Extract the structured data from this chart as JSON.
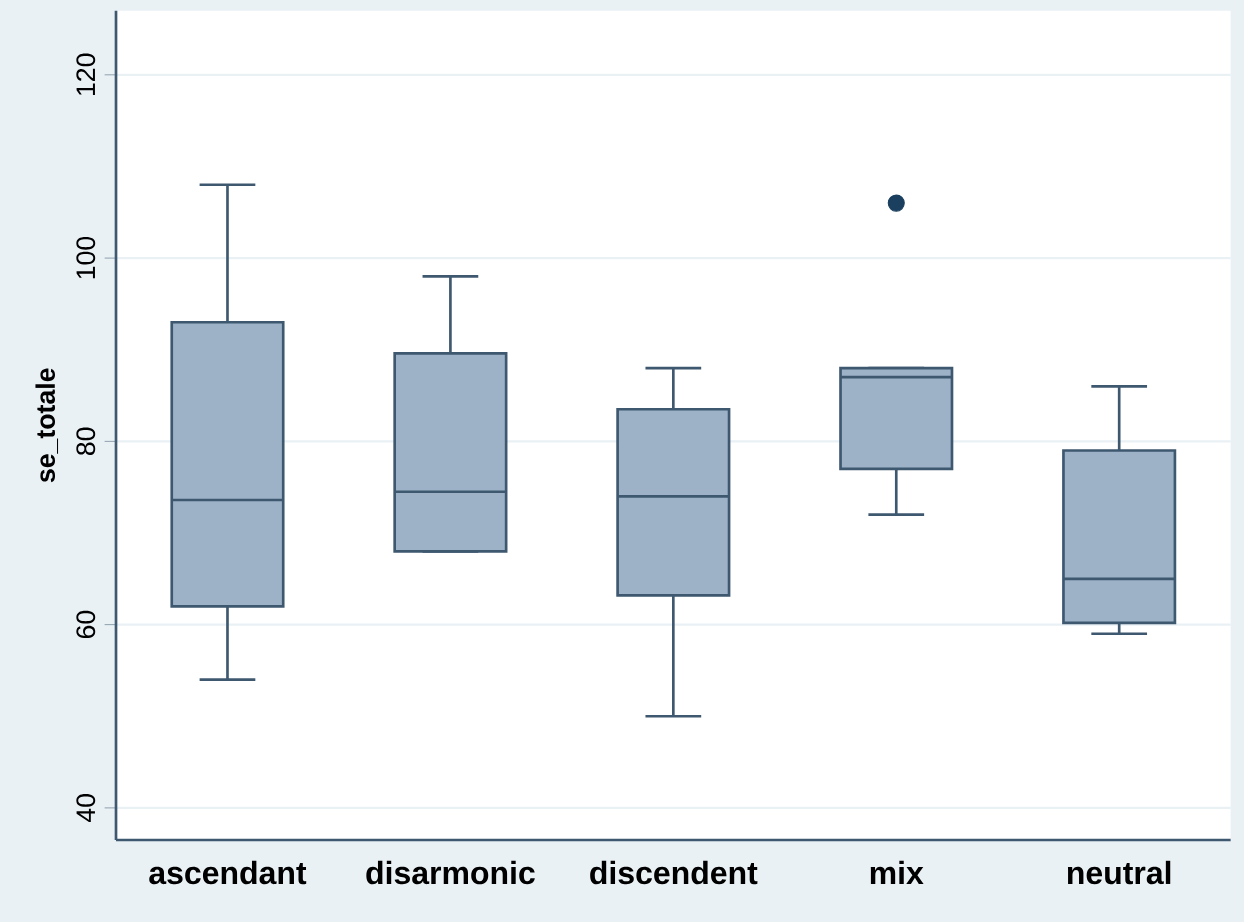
{
  "chart_data": {
    "type": "box",
    "ylabel": "se_totale",
    "categories": [
      "ascendant",
      "disarmonic",
      "discendent",
      "mix",
      "neutral"
    ],
    "series": [
      {
        "color": "#9db2c7",
        "boxes": [
          {
            "low": 54,
            "q1": 62,
            "median": 73.6,
            "q3": 93,
            "high": 108
          },
          {
            "low": 68,
            "q1": 68,
            "median": 74.5,
            "q3": 89.6,
            "high": 98
          },
          {
            "low": 50,
            "q1": 63.2,
            "median": 74,
            "q3": 83.5,
            "high": 88
          },
          {
            "low": 72,
            "q1": 77,
            "median": 87,
            "q3": 88,
            "high": 88,
            "outliers": [
              106
            ]
          },
          {
            "low": 59,
            "q1": 60.2,
            "median": 65,
            "q3": 79,
            "high": 86
          }
        ]
      }
    ],
    "ylim": [
      36.5,
      127
    ],
    "yticks": [
      40,
      60,
      80,
      100,
      120
    ],
    "grid": "y"
  }
}
